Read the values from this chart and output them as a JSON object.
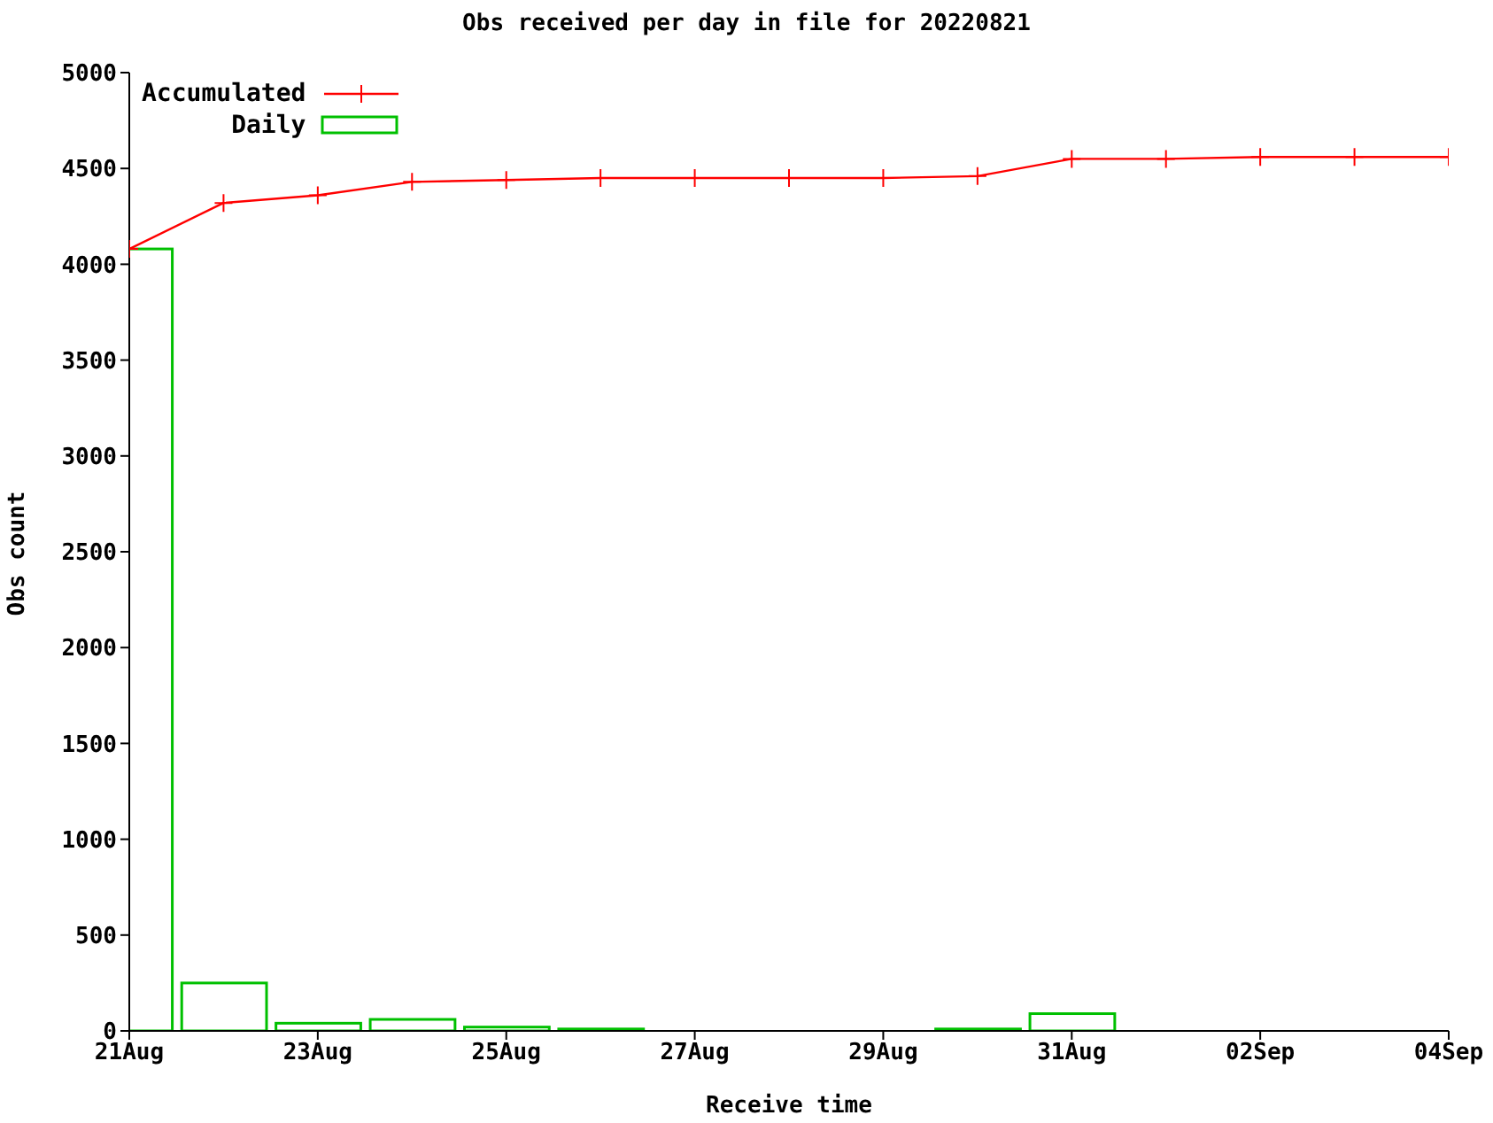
{
  "chart_data": {
    "type": "line",
    "title": "Obs received per day in file for 20220821",
    "xlabel": "Receive time",
    "ylabel": "Obs count",
    "x": [
      "2022-08-21",
      "2022-08-22",
      "2022-08-23",
      "2022-08-24",
      "2022-08-25",
      "2022-08-26",
      "2022-08-27",
      "2022-08-28",
      "2022-08-29",
      "2022-08-30",
      "2022-08-31",
      "2022-09-01",
      "2022-09-02",
      "2022-09-03",
      "2022-09-04"
    ],
    "series": [
      {
        "name": "Accumulated",
        "color": "#ff0000",
        "marker": "cross",
        "values": [
          4080,
          4320,
          4360,
          4430,
          4440,
          4450,
          4450,
          4450,
          4450,
          4460,
          4550,
          4550,
          4560,
          4560,
          4560
        ]
      },
      {
        "name": "Daily",
        "type": "bar",
        "color": "#00c000",
        "values": [
          4080,
          250,
          40,
          60,
          20,
          10,
          0,
          0,
          0,
          10,
          90,
          0,
          0,
          0,
          0
        ]
      }
    ],
    "xlim": [
      "2022-08-21",
      "2022-09-04"
    ],
    "xticks": [
      {
        "value": "2022-08-21",
        "label": "21Aug"
      },
      {
        "value": "2022-08-23",
        "label": "23Aug"
      },
      {
        "value": "2022-08-25",
        "label": "25Aug"
      },
      {
        "value": "2022-08-27",
        "label": "27Aug"
      },
      {
        "value": "2022-08-29",
        "label": "29Aug"
      },
      {
        "value": "2022-08-31",
        "label": "31Aug"
      },
      {
        "value": "2022-09-02",
        "label": "02Sep"
      },
      {
        "value": "2022-09-04",
        "label": "04Sep"
      }
    ],
    "ylim": [
      0,
      5000
    ],
    "yticks": [
      0,
      500,
      1000,
      1500,
      2000,
      2500,
      3000,
      3500,
      4000,
      4500,
      5000
    ],
    "legend": "top left"
  }
}
